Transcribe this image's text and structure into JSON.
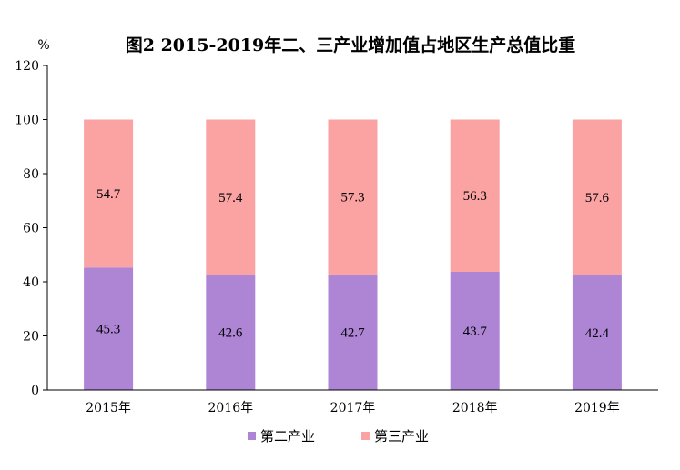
{
  "chart_data": {
    "type": "bar",
    "stacked": true,
    "title": "图2   2015-2019年二、三产业增加值占地区生产总值比重",
    "unit_label": "%",
    "categories": [
      "2015年",
      "2016年",
      "2017年",
      "2018年",
      "2019年"
    ],
    "series": [
      {
        "name": "第二产业",
        "values": [
          45.3,
          42.6,
          42.7,
          43.7,
          42.4
        ],
        "color": "#ad85d4"
      },
      {
        "name": "第三产业",
        "values": [
          54.7,
          57.4,
          57.3,
          56.3,
          57.6
        ],
        "color": "#fba3a3"
      }
    ],
    "ylim": [
      0,
      120
    ],
    "yticks": [
      0,
      20,
      40,
      60,
      80,
      100,
      120
    ],
    "grid": false,
    "legend_position": "bottom"
  }
}
